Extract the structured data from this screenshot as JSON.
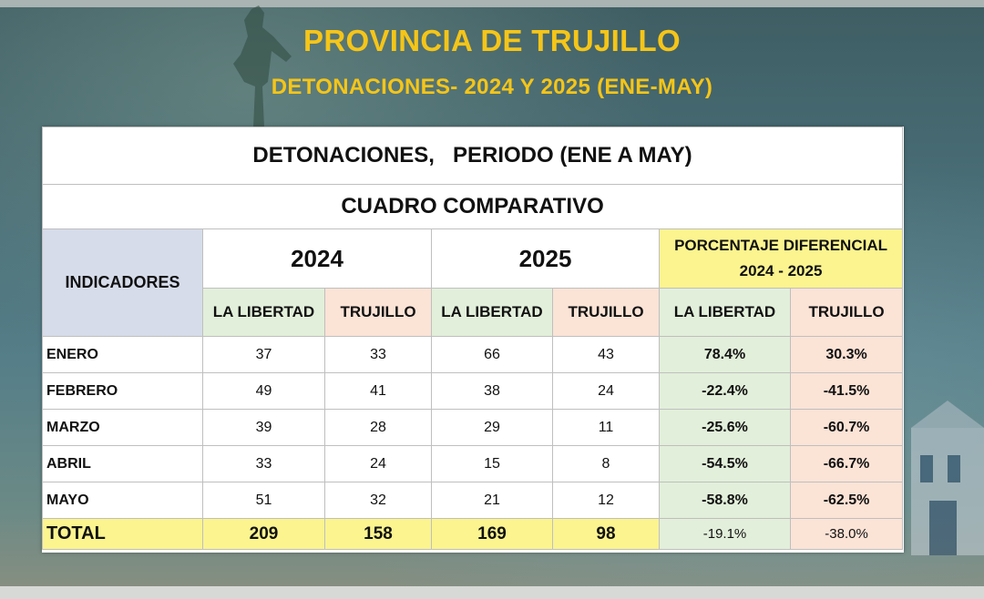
{
  "title": "PROVINCIA DE TRUJILLO",
  "subtitle": "DETONACIONES- 2024 Y 2025 (ENE-MAY)",
  "table": {
    "heading": "DETONACIONES,   PERIODO (ENE A MAY)",
    "subheading": "CUADRO COMPARATIVO",
    "indicators_label": "INDICADORES",
    "year_a": "2024",
    "year_b": "2025",
    "pct_label_line1": "PORCENTAJE DIFERENCIAL",
    "pct_label_line2": "2024 - 2025",
    "col_la_libertad": "LA LIBERTAD",
    "col_trujillo": "TRUJILLO",
    "rows": [
      {
        "label": "ENERO",
        "ll_2024": "37",
        "tr_2024": "33",
        "ll_2025": "66",
        "tr_2025": "43",
        "ll_pct": "78.4%",
        "tr_pct": "30.3%"
      },
      {
        "label": "FEBRERO",
        "ll_2024": "49",
        "tr_2024": "41",
        "ll_2025": "38",
        "tr_2025": "24",
        "ll_pct": "-22.4%",
        "tr_pct": "-41.5%"
      },
      {
        "label": "MARZO",
        "ll_2024": "39",
        "tr_2024": "28",
        "ll_2025": "29",
        "tr_2025": "11",
        "ll_pct": "-25.6%",
        "tr_pct": "-60.7%"
      },
      {
        "label": "ABRIL",
        "ll_2024": "33",
        "tr_2024": "24",
        "ll_2025": "15",
        "tr_2025": "8",
        "ll_pct": "-54.5%",
        "tr_pct": "-66.7%"
      },
      {
        "label": "MAYO",
        "ll_2024": "51",
        "tr_2024": "32",
        "ll_2025": "21",
        "tr_2025": "12",
        "ll_pct": "-58.8%",
        "tr_pct": "-62.5%"
      }
    ],
    "total": {
      "label": "TOTAL",
      "ll_2024": "209",
      "tr_2024": "158",
      "ll_2025": "169",
      "tr_2025": "98",
      "ll_pct": "-19.1%",
      "tr_pct": "-38.0%"
    }
  }
}
